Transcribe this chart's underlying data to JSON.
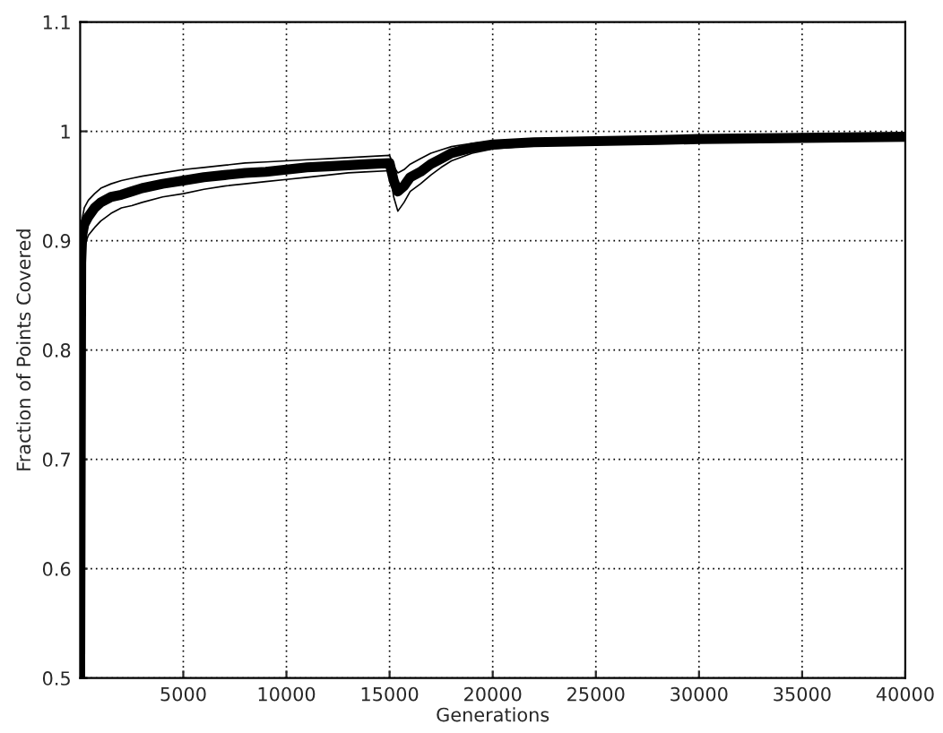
{
  "chart_data": {
    "type": "line",
    "xlabel": "Generations",
    "ylabel": "Fraction of Points Covered",
    "xlim": [
      0,
      40000
    ],
    "ylim": [
      0.5,
      1.1
    ],
    "xticks": [
      5000,
      10000,
      15000,
      20000,
      25000,
      30000,
      35000,
      40000
    ],
    "yticks": [
      0.5,
      0.6,
      0.7,
      0.8,
      0.9,
      1,
      1.1
    ],
    "grid": true,
    "line_style": "solid",
    "marker": "none",
    "series": [
      {
        "color": "#000000",
        "x": [
          0,
          50,
          100,
          200,
          400,
          700,
          1000,
          1500,
          2000,
          2500,
          3000,
          4000,
          5000,
          6000,
          7000,
          8000,
          9000,
          10000,
          11000,
          12000,
          13000,
          14000,
          15000,
          15200,
          15400,
          15700,
          16000,
          16500,
          17000,
          17500,
          18000,
          19000,
          20000,
          22000,
          25000,
          28000,
          30000,
          35000,
          40000
        ],
        "values": [
          0.5,
          0.88,
          0.905,
          0.915,
          0.922,
          0.93,
          0.935,
          0.94,
          0.942,
          0.945,
          0.948,
          0.952,
          0.955,
          0.958,
          0.96,
          0.962,
          0.963,
          0.965,
          0.967,
          0.968,
          0.969,
          0.97,
          0.971,
          0.955,
          0.945,
          0.95,
          0.958,
          0.963,
          0.97,
          0.975,
          0.98,
          0.985,
          0.988,
          0.99,
          0.991,
          0.992,
          0.993,
          0.994,
          0.995
        ]
      },
      {
        "color": "#000000",
        "x": [
          100,
          200,
          400,
          700,
          1000,
          1500,
          2000,
          2500,
          3000,
          4000,
          5000,
          6000,
          7000,
          8000,
          9000,
          10000,
          11000,
          12000,
          13000,
          14000,
          15000,
          15200,
          15400,
          15700,
          16000,
          16500,
          17000,
          17500,
          18000,
          19000,
          20000,
          22000,
          25000
        ],
        "values": [
          0.88,
          0.895,
          0.905,
          0.912,
          0.918,
          0.925,
          0.93,
          0.932,
          0.935,
          0.94,
          0.943,
          0.947,
          0.95,
          0.952,
          0.954,
          0.956,
          0.958,
          0.96,
          0.962,
          0.963,
          0.964,
          0.94,
          0.927,
          0.935,
          0.945,
          0.952,
          0.96,
          0.967,
          0.973,
          0.98,
          0.984,
          0.987,
          0.989
        ]
      },
      {
        "color": "#000000",
        "x": [
          100,
          200,
          400,
          700,
          1000,
          1500,
          2000,
          2500,
          3000,
          4000,
          5000,
          6000,
          7000,
          8000,
          9000,
          10000,
          11000,
          12000,
          13000,
          14000,
          15000,
          15200,
          15400,
          15700,
          16000,
          16500,
          17000,
          17500,
          18000,
          19000,
          20000,
          22000,
          25000
        ],
        "values": [
          0.92,
          0.93,
          0.937,
          0.943,
          0.948,
          0.952,
          0.955,
          0.957,
          0.959,
          0.962,
          0.965,
          0.967,
          0.969,
          0.971,
          0.972,
          0.973,
          0.974,
          0.975,
          0.976,
          0.977,
          0.978,
          0.968,
          0.962,
          0.965,
          0.97,
          0.975,
          0.98,
          0.983,
          0.986,
          0.989,
          0.991,
          0.993,
          0.994
        ]
      }
    ]
  }
}
